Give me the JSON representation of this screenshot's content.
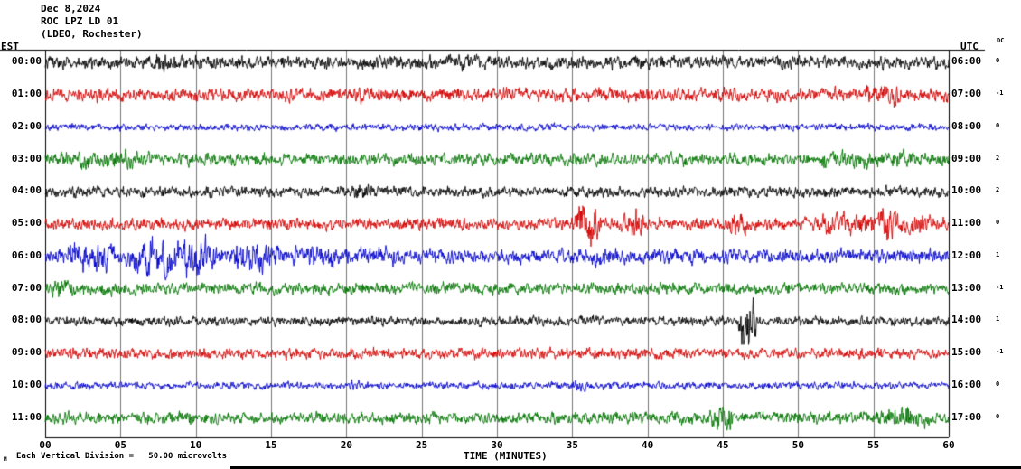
{
  "header": {
    "date": "Dec 8,2024",
    "station": "ROC LPZ LD 01",
    "location": "(LDEO, Rochester)"
  },
  "axes": {
    "left_tz": "EST",
    "right_tz": "UTC",
    "dc_label": "DC",
    "xlabel": "TIME (MINUTES)",
    "x_ticks": [
      "00",
      "05",
      "10",
      "15",
      "20",
      "25",
      "30",
      "35",
      "40",
      "45",
      "50",
      "55",
      "60"
    ]
  },
  "footer": {
    "scale_note": "Each Vertical Division =   50.00 microvolts",
    "marker": "M"
  },
  "chart_data": {
    "type": "line",
    "title": "ROC LPZ LD 01 (LDEO, Rochester) helicorder seismogram, Dec 8,2024",
    "xlabel": "TIME (MINUTES)",
    "x_range": [
      0,
      60
    ],
    "x_tick_labels": [
      "00",
      "05",
      "10",
      "15",
      "20",
      "25",
      "30",
      "35",
      "40",
      "45",
      "50",
      "55",
      "60"
    ],
    "minutes_per_row": 60,
    "vertical_division_microvolts": 50.0,
    "color_cycle": [
      "#000000",
      "#d40000",
      "#0000cc",
      "#007400"
    ],
    "rows": [
      {
        "est": "00:00",
        "utc": "06:00",
        "dc": "0",
        "color": "#000000",
        "seed": 11,
        "base_amp": 5.5,
        "bursts": [
          {
            "t0": 7,
            "t1": 9,
            "amp": 8
          },
          {
            "t0": 27,
            "t1": 29,
            "amp": 7
          }
        ]
      },
      {
        "est": "01:00",
        "utc": "07:00",
        "dc": "-1",
        "color": "#d40000",
        "seed": 22,
        "base_amp": 5.5,
        "bursts": [
          {
            "t0": 20,
            "t1": 22,
            "amp": 8
          },
          {
            "t0": 54,
            "t1": 57,
            "amp": 9
          }
        ]
      },
      {
        "est": "02:00",
        "utc": "08:00",
        "dc": "0",
        "color": "#0000cc",
        "seed": 33,
        "base_amp": 3,
        "bursts": []
      },
      {
        "est": "03:00",
        "utc": "09:00",
        "dc": "2",
        "color": "#007400",
        "seed": 44,
        "base_amp": 5,
        "bursts": [
          {
            "t0": 0,
            "t1": 8,
            "amp": 7.5
          },
          {
            "t0": 50,
            "t1": 60,
            "amp": 7
          }
        ]
      },
      {
        "est": "04:00",
        "utc": "10:00",
        "dc": "2",
        "color": "#000000",
        "seed": 55,
        "base_amp": 4.5,
        "bursts": [
          {
            "t0": 20,
            "t1": 22,
            "amp": 7
          }
        ]
      },
      {
        "est": "05:00",
        "utc": "11:00",
        "dc": "0",
        "color": "#d40000",
        "seed": 66,
        "base_amp": 5,
        "bursts": [
          {
            "t0": 35,
            "t1": 37,
            "amp": 16
          },
          {
            "t0": 38,
            "t1": 40,
            "amp": 12
          },
          {
            "t0": 45,
            "t1": 47,
            "amp": 9
          },
          {
            "t0": 50,
            "t1": 60,
            "amp": 9
          },
          {
            "t0": 55,
            "t1": 57,
            "amp": 13
          }
        ]
      },
      {
        "est": "06:00",
        "utc": "12:00",
        "dc": "1",
        "color": "#0000cc",
        "seed": 77,
        "base_amp": 6,
        "bursts": [
          {
            "t0": 1,
            "t1": 5,
            "amp": 12
          },
          {
            "t0": 5,
            "t1": 12,
            "amp": 16
          },
          {
            "t0": 12,
            "t1": 16,
            "amp": 13
          },
          {
            "t0": 16,
            "t1": 20,
            "amp": 10
          },
          {
            "t0": 20,
            "t1": 24,
            "amp": 8
          },
          {
            "t0": 36,
            "t1": 38,
            "amp": 8
          }
        ]
      },
      {
        "est": "07:00",
        "utc": "13:00",
        "dc": "-1",
        "color": "#007400",
        "seed": 88,
        "base_amp": 5,
        "bursts": [
          {
            "t0": 0,
            "t1": 3,
            "amp": 7
          }
        ]
      },
      {
        "est": "08:00",
        "utc": "14:00",
        "dc": "1",
        "color": "#000000",
        "seed": 99,
        "base_amp": 4,
        "bursts": [
          {
            "t0": 46,
            "t1": 47.3,
            "amp": 26
          }
        ]
      },
      {
        "est": "09:00",
        "utc": "15:00",
        "dc": "-1",
        "color": "#d40000",
        "seed": 110,
        "base_amp": 4.5,
        "bursts": []
      },
      {
        "est": "10:00",
        "utc": "16:00",
        "dc": "0",
        "color": "#0000cc",
        "seed": 121,
        "base_amp": 3,
        "bursts": [
          {
            "t0": 20,
            "t1": 21,
            "amp": 5
          },
          {
            "t0": 35,
            "t1": 36,
            "amp": 5
          }
        ]
      },
      {
        "est": "11:00",
        "utc": "17:00",
        "dc": "0",
        "color": "#007400",
        "seed": 132,
        "base_amp": 5,
        "bursts": [
          {
            "t0": 44,
            "t1": 46,
            "amp": 12
          },
          {
            "t0": 55,
            "t1": 59,
            "amp": 10
          }
        ]
      }
    ]
  }
}
